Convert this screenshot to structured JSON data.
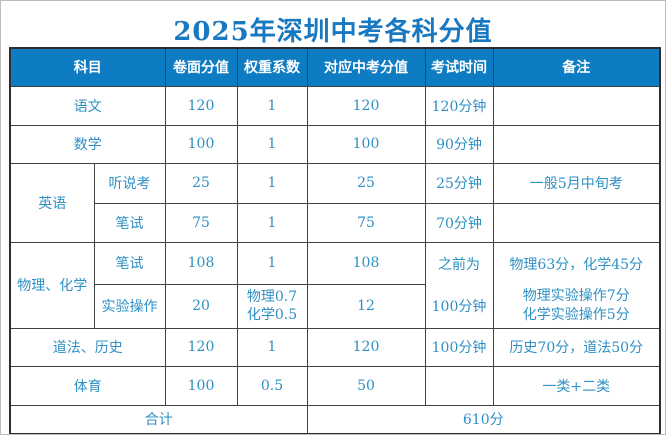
{
  "title": "2025年深圳中考各科分值",
  "colors": {
    "title_text": "#1878c0",
    "header_bg": "#0e7cc3",
    "header_text": "#ffffff",
    "body_text": "#2e90c4",
    "grid_border": "#424242",
    "background": "#ffffff"
  },
  "table": {
    "header": {
      "subject": "科目",
      "paper": "卷面分值",
      "weight": "权重系数",
      "exam_score": "对应中考分值",
      "exam_time": "考试时间",
      "remarks": "备注"
    },
    "rows": {
      "chinese": {
        "subject": "语文",
        "paper": "120",
        "weight": "1",
        "score": "120",
        "time": "120分钟",
        "remarks": ""
      },
      "math": {
        "subject": "数学",
        "paper": "100",
        "weight": "1",
        "score": "100",
        "time": "90分钟",
        "remarks": ""
      },
      "english": {
        "subject": "英语",
        "listening": {
          "sub": "听说考",
          "paper": "25",
          "weight": "1",
          "score": "25",
          "time": "25分钟",
          "remarks": "一般5月中旬考"
        },
        "written": {
          "sub": "笔试",
          "paper": "75",
          "weight": "1",
          "score": "75",
          "time": "70分钟",
          "remarks": ""
        }
      },
      "physchem": {
        "subject": "物理、化学",
        "written": {
          "sub": "笔试",
          "paper": "108",
          "weight": "1",
          "score": "108"
        },
        "lab": {
          "sub": "实验操作",
          "paper": "20",
          "weight_top": "物理0.7",
          "weight_bottom": "化学0.5",
          "score": "12"
        },
        "time_top": "之前为",
        "time_bottom": "100分钟",
        "remark_top": "物理63分，化学45分",
        "remark_mid": "物理实验操作7分",
        "remark_bottom": "化学实验操作5分"
      },
      "daofa": {
        "subject": "道法、历史",
        "paper": "120",
        "weight": "1",
        "score": "120",
        "time": "100分钟",
        "remarks": "历史70分，道法50分"
      },
      "pe": {
        "subject": "体育",
        "paper": "100",
        "weight": "0.5",
        "score": "50",
        "time": "",
        "remarks": "一类+二类"
      },
      "total": {
        "label": "合计",
        "value": "610分"
      }
    }
  },
  "chart_data": {
    "type": "table",
    "title": "2025年深圳中考各科分值",
    "columns": [
      "科目",
      "卷面分值",
      "权重系数",
      "对应中考分值",
      "考试时间",
      "备注"
    ],
    "rows": [
      [
        "语文",
        "120",
        "1",
        "120",
        "120分钟",
        ""
      ],
      [
        "数学",
        "100",
        "1",
        "100",
        "90分钟",
        ""
      ],
      [
        "英语 听说考",
        "25",
        "1",
        "25",
        "25分钟",
        "一般5月中旬考"
      ],
      [
        "英语 笔试",
        "75",
        "1",
        "75",
        "70分钟",
        ""
      ],
      [
        "物理、化学 笔试",
        "108",
        "1",
        "108",
        "之前为100分钟",
        "物理63分，化学45分"
      ],
      [
        "物理、化学 实验操作",
        "20",
        "物理0.7 化学0.5",
        "12",
        "之前为100分钟",
        "物理实验操作7分 化学实验操作5分"
      ],
      [
        "道法、历史",
        "120",
        "1",
        "120",
        "100分钟",
        "历史70分，道法50分"
      ],
      [
        "体育",
        "100",
        "0.5",
        "50",
        "",
        "一类+二类"
      ],
      [
        "合计",
        "",
        "",
        "610分",
        "",
        ""
      ]
    ]
  }
}
